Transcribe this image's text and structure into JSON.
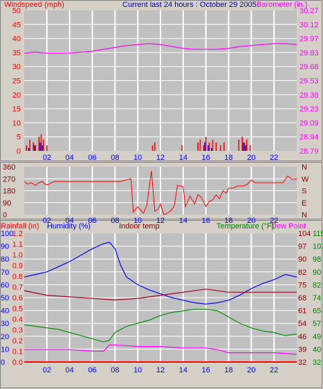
{
  "header": {
    "left": "Windspeed (mph)",
    "center": "Current last 24 hours : October 29 2005",
    "right": "Barometer (in.)"
  },
  "panel3_header": {
    "rainfall": "Rainfall (in)",
    "humidity": "Humidity (%)",
    "indoor": "Indoor temp",
    "temperature": "Temperature (°F)",
    "dewpoint": "Dew Point"
  },
  "x_ticks": [
    "02",
    "04",
    "06",
    "08",
    "10",
    "12",
    "14",
    "16",
    "18",
    "20",
    "22"
  ],
  "colors": {
    "background": "#d4d0c8",
    "plot": "#c0c0c0",
    "grid": "#ffffff",
    "red": "#ff0000",
    "blue": "#0000ff",
    "magenta": "#ff00ff",
    "darkred": "#800000",
    "green": "#008000",
    "darkredline": "#a00020",
    "greenline": "#009000"
  },
  "chart_data": [
    {
      "type": "line",
      "name": "windspeed-barometer",
      "x_range_hours": [
        0,
        24
      ],
      "left_axis": {
        "label": "Windspeed (mph)",
        "range": [
          0,
          50
        ],
        "ticks": [
          "0",
          "5",
          "10",
          "15",
          "20",
          "25",
          "30",
          "35",
          "40",
          "45",
          "50"
        ]
      },
      "right_axis": {
        "label": "Barometer (in.)",
        "range": [
          28.79,
          30.27
        ],
        "ticks": [
          "28.79",
          "28.94",
          "29.09",
          "29.23",
          "29.38",
          "29.53",
          "29.68",
          "29.83",
          "29.97",
          "30.12",
          "30.27"
        ]
      },
      "series": [
        {
          "name": "Barometer (in.)",
          "axis": "right",
          "color": "magenta",
          "x": [
            0,
            1,
            2,
            3,
            4,
            5,
            6,
            7,
            8,
            9,
            10,
            11,
            12,
            13,
            14,
            15,
            16,
            17,
            18,
            19,
            20,
            21,
            22,
            23,
            24
          ],
          "values": [
            29.82,
            29.83,
            29.82,
            29.82,
            29.82,
            29.83,
            29.84,
            29.86,
            29.88,
            29.9,
            29.91,
            29.92,
            29.91,
            29.89,
            29.87,
            29.86,
            29.86,
            29.86,
            29.87,
            29.89,
            29.9,
            29.91,
            29.92,
            29.92,
            29.91
          ]
        },
        {
          "name": "Wind gust",
          "axis": "left",
          "color": "red",
          "style": "spikes",
          "x": [
            0.2,
            0.5,
            0.8,
            1.0,
            1.3,
            1.5,
            1.7,
            2.0,
            11.3,
            11.5,
            13.9,
            15.3,
            15.5,
            15.8,
            16.0,
            16.3,
            16.6,
            16.9,
            17.3,
            17.6,
            18.9,
            19.2,
            19.4,
            19.6,
            19.9
          ],
          "values": [
            2,
            4,
            3,
            2,
            5,
            6,
            4,
            2,
            2,
            3,
            2,
            3,
            4,
            2,
            5,
            3,
            4,
            3,
            2,
            3,
            4,
            5,
            3,
            4,
            2
          ]
        },
        {
          "name": "Wind speed",
          "axis": "left",
          "color": "blue",
          "style": "spikes",
          "x": [
            0.4,
            0.9,
            1.4,
            1.6,
            15.9,
            16.2,
            16.5,
            19.3,
            19.5
          ],
          "values": [
            1,
            2,
            3,
            2,
            3,
            2,
            1,
            3,
            2
          ]
        }
      ]
    },
    {
      "type": "line",
      "name": "wind-direction",
      "left_axis": {
        "range": [
          0,
          360
        ],
        "ticks": [
          "0",
          "90",
          "180",
          "270",
          "360"
        ]
      },
      "right_axis": {
        "ticks": [
          "N",
          "E",
          "S",
          "W",
          "N"
        ]
      },
      "series": [
        {
          "name": "Wind direction",
          "color": "red",
          "x": [
            0,
            0.3,
            0.6,
            1.0,
            1.3,
            1.6,
            1.8,
            2.1,
            2.4,
            2.7,
            3.0,
            3.5,
            4.5,
            5.5,
            6.5,
            7.5,
            8.5,
            9.4,
            9.6,
            10.0,
            10.2,
            10.5,
            10.8,
            11.2,
            11.5,
            11.8,
            12.0,
            12.3,
            12.6,
            12.9,
            13.2,
            13.5,
            13.8,
            14.0,
            14.2,
            14.6,
            15.0,
            15.3,
            15.6,
            16.0,
            16.3,
            16.6,
            16.9,
            17.2,
            17.5,
            17.8,
            18.0,
            18.4,
            18.8,
            19.2,
            19.6,
            20.0,
            20.3,
            20.8,
            21.5,
            22.2,
            22.8,
            23.2,
            23.6,
            24.0
          ],
          "values": [
            250,
            230,
            240,
            220,
            240,
            250,
            230,
            225,
            240,
            250,
            250,
            250,
            250,
            250,
            250,
            250,
            250,
            270,
            20,
            60,
            40,
            10,
            70,
            330,
            25,
            40,
            80,
            0,
            10,
            30,
            60,
            220,
            215,
            210,
            60,
            140,
            80,
            150,
            130,
            60,
            100,
            110,
            150,
            120,
            180,
            160,
            200,
            200,
            215,
            215,
            225,
            260,
            240,
            240,
            240,
            240,
            240,
            290,
            265,
            270
          ]
        }
      ]
    },
    {
      "type": "line",
      "name": "temperature-humidity",
      "left_axis": {
        "label": "Humidity (%)",
        "range": [
          0,
          100
        ],
        "ticks": [
          "0",
          "10",
          "20",
          "30",
          "40",
          "50",
          "60",
          "70",
          "80",
          "90",
          "100"
        ]
      },
      "rain_axis": {
        "label": "Rainfall (in)",
        "range": [
          0,
          1.2
        ],
        "ticks": [
          "0.0",
          "0.1",
          "0.2",
          "0.3",
          "0.4",
          "0.5",
          "0.6",
          "0.7",
          "0.8",
          "0.9",
          "1.0",
          "1.1",
          "1.2"
        ]
      },
      "right_axis_1": {
        "ticks": [
          "32",
          "39",
          "46",
          "54",
          "61",
          "68",
          "75",
          "82",
          "90",
          "97",
          "104"
        ]
      },
      "right_axis_2": {
        "label": "Temperature (°F)",
        "range": [
          32,
          115
        ],
        "ticks": [
          "32",
          "40",
          "49",
          "57",
          "65",
          "74",
          "82",
          "90",
          "98",
          "107",
          "115"
        ]
      },
      "series": [
        {
          "name": "Humidity (%)",
          "axis": "left",
          "color": "blue",
          "x": [
            0,
            1,
            2,
            3,
            4,
            5,
            6,
            7,
            7.5,
            8,
            8.5,
            9,
            10,
            11,
            12,
            13,
            14,
            15,
            16,
            17,
            18,
            19,
            20,
            21,
            22,
            23,
            24
          ],
          "values": [
            66,
            68,
            70,
            74,
            78,
            83,
            88,
            92,
            93,
            88,
            75,
            66,
            60,
            56,
            53,
            50,
            48,
            46,
            45,
            46,
            48,
            52,
            57,
            61,
            64,
            68,
            66
          ]
        },
        {
          "name": "Indoor temp",
          "axis": "right_2",
          "color": "darkred",
          "x": [
            0,
            2,
            4,
            6,
            8,
            10,
            12,
            14,
            16,
            18,
            20,
            22,
            24
          ],
          "values": [
            78,
            75,
            74,
            73,
            72,
            73,
            75,
            77,
            79,
            77,
            77,
            77,
            77
          ]
        },
        {
          "name": "Temperature (°F)",
          "axis": "right_2",
          "color": "green",
          "x": [
            0,
            1,
            2,
            3,
            4,
            5,
            6,
            7,
            7.5,
            8,
            9,
            10,
            11,
            12,
            13,
            14,
            15,
            16,
            17,
            18,
            19,
            20,
            21,
            22,
            23,
            24
          ],
          "values": [
            56,
            55,
            54,
            53,
            51,
            49,
            47,
            45,
            46,
            51,
            55,
            57,
            59,
            62,
            64,
            65,
            66,
            66,
            65,
            61,
            57,
            54,
            52,
            51,
            49,
            50
          ]
        },
        {
          "name": "Dew Point",
          "axis": "right_2",
          "color": "magenta",
          "x": [
            0,
            2,
            4,
            6,
            7,
            7.5,
            8,
            10,
            12,
            14,
            16,
            17,
            18,
            20,
            22,
            24
          ],
          "values": [
            40,
            40,
            40,
            39,
            39,
            43,
            43,
            42,
            42,
            41,
            41,
            40,
            38,
            38,
            38,
            37
          ]
        },
        {
          "name": "Rainfall (in)",
          "axis": "rain",
          "color": "red",
          "x": [
            0,
            24
          ],
          "values": [
            0,
            0
          ]
        }
      ]
    }
  ]
}
